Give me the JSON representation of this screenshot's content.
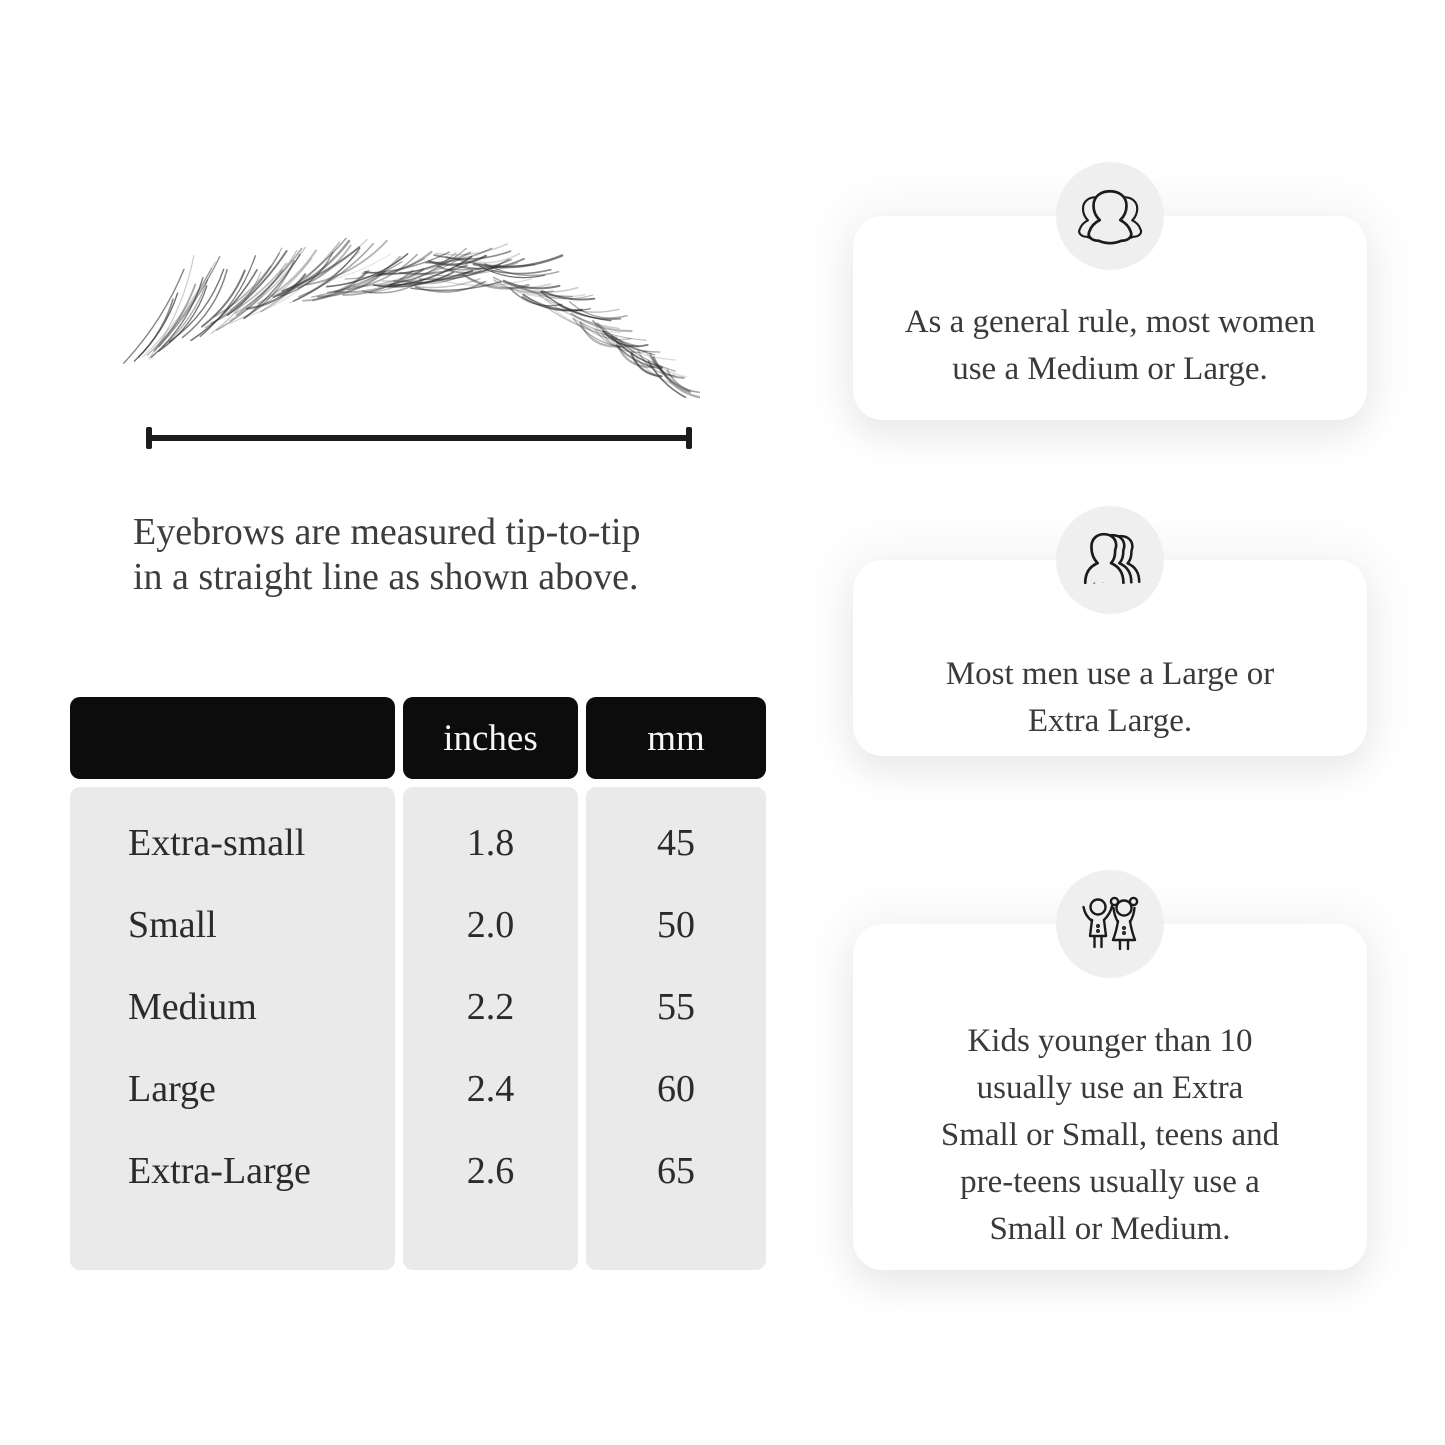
{
  "figure": {
    "caption_line1": "Eyebrows are measured tip-to-tip",
    "caption_line2": "in a straight line as shown above."
  },
  "table": {
    "headers": [
      "",
      "inches",
      "mm"
    ],
    "rows": [
      {
        "label": "Extra-small",
        "inches": "1.8",
        "mm": "45"
      },
      {
        "label": "Small",
        "inches": "2.0",
        "mm": "50"
      },
      {
        "label": "Medium",
        "inches": "2.2",
        "mm": "55"
      },
      {
        "label": "Large",
        "inches": "2.4",
        "mm": "60"
      },
      {
        "label": "Extra-Large",
        "inches": "2.6",
        "mm": "65"
      }
    ]
  },
  "cards": [
    {
      "icon": "women-group-icon",
      "lines": [
        "As a general rule, most women",
        "use a Medium or Large."
      ]
    },
    {
      "icon": "men-group-icon",
      "lines": [
        "Most men use a Large or",
        "Extra Large."
      ]
    },
    {
      "icon": "kids-icon",
      "lines": [
        "Kids younger than 10",
        "usually use an Extra",
        "Small or Small, teens and",
        "pre-teens usually use a",
        "Small or Medium."
      ]
    }
  ],
  "colors": {
    "header_bg": "#0c0c0c",
    "table_body_bg": "#eaeaea",
    "badge_bg": "#efeff0",
    "card_bg": "#ffffff",
    "ink": "#1b1b1b",
    "text": "#3a3a3a"
  }
}
